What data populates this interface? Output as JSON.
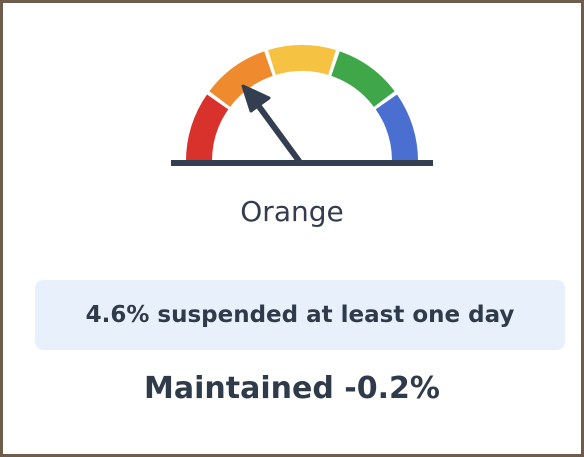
{
  "gauge": {
    "level": "Orange"
  },
  "stat": "4.6% suspended at least one day",
  "change": "Maintained -0.2%"
}
